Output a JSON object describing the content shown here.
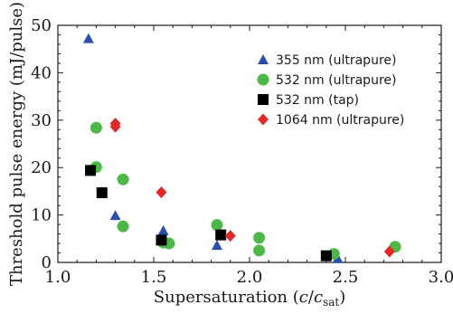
{
  "chart_data": {
    "type": "scatter",
    "xlabel": "Supersaturation",
    "xlabel_symbol": "c",
    "xlabel_symbol_denominator": "c",
    "xlabel_subscript": "sat",
    "ylabel": "Threshold pulse energy (mJ/pulse)",
    "xlim": [
      1.0,
      3.0
    ],
    "ylim": [
      0,
      50
    ],
    "xticks": [
      "1.0",
      "1.5",
      "2.0",
      "2.5",
      "3.0"
    ],
    "yticks": [
      "0",
      "10",
      "20",
      "30",
      "40",
      "50"
    ],
    "grid": false,
    "legend_position": "top-right",
    "series": [
      {
        "name": "355 nm (ultrapure)",
        "marker": "triangle",
        "color": "#2b4fa8",
        "points": [
          [
            1.16,
            47.2
          ],
          [
            1.3,
            9.9
          ],
          [
            1.55,
            6.7
          ],
          [
            1.83,
            3.6
          ],
          [
            2.46,
            0.8
          ]
        ]
      },
      {
        "name": "532 nm (ultrapure)",
        "marker": "circle",
        "color": "#4db848",
        "points": [
          [
            1.2,
            28.4
          ],
          [
            1.2,
            20.1
          ],
          [
            1.34,
            17.5
          ],
          [
            1.34,
            7.6
          ],
          [
            1.55,
            4.2
          ],
          [
            1.58,
            4.0
          ],
          [
            1.83,
            7.9
          ],
          [
            2.05,
            5.2
          ],
          [
            2.05,
            2.5
          ],
          [
            2.44,
            1.8
          ],
          [
            2.76,
            3.3
          ]
        ]
      },
      {
        "name": "532 nm (tap)",
        "marker": "square",
        "color": "#000000",
        "points": [
          [
            1.17,
            19.4
          ],
          [
            1.23,
            14.7
          ],
          [
            1.54,
            4.7
          ],
          [
            1.85,
            5.8
          ],
          [
            2.4,
            1.4
          ]
        ]
      },
      {
        "name": "1064 nm (ultrapure)",
        "marker": "diamond",
        "color": "#e02828",
        "points": [
          [
            1.3,
            29.3
          ],
          [
            1.3,
            28.6
          ],
          [
            1.54,
            14.8
          ],
          [
            1.9,
            5.6
          ],
          [
            2.73,
            2.3
          ]
        ]
      }
    ]
  }
}
